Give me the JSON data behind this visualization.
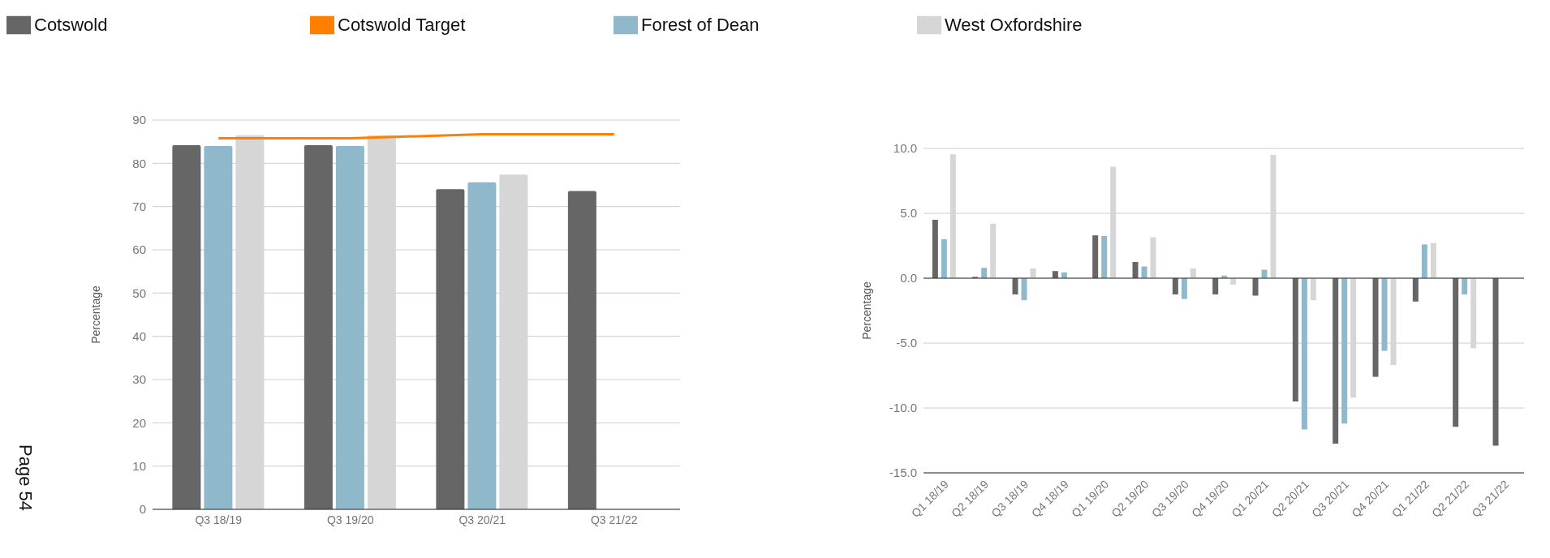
{
  "chart_data": [
    {
      "type": "bar",
      "categories": [
        "Q3 18/19",
        "Q3 19/20",
        "Q3 20/21",
        "Q3 21/22"
      ],
      "series": [
        {
          "name": "Cotswold Target",
          "type": "line",
          "color": "#ff7f00",
          "values": [
            85.8,
            85.8,
            86.7,
            86.7
          ]
        },
        {
          "name": "Cotswold",
          "color": "#666666",
          "values": [
            84.2,
            84.2,
            74.0,
            73.6
          ]
        },
        {
          "name": "Forest of Dean",
          "color": "#8fb9cb",
          "values": [
            84.0,
            84.0,
            75.6,
            null
          ]
        },
        {
          "name": "West Oxfordshire",
          "color": "#d6d6d6",
          "values": [
            86.5,
            86.5,
            77.4,
            null
          ]
        }
      ],
      "ylabel": "Percentage",
      "ylim": [
        0,
        90
      ],
      "yticks": [
        0,
        10,
        20,
        30,
        40,
        50,
        60,
        70,
        80,
        90
      ],
      "grid": "y",
      "legend": "top",
      "marker": "none",
      "annotations": [
        "Page 54"
      ]
    },
    {
      "type": "bar",
      "categories": [
        "Q1 18/19",
        "Q2 18/19",
        "Q3 18/19",
        "Q4 18/19",
        "Q1 19/20",
        "Q2 19/20",
        "Q3 19/20",
        "Q4 19/20",
        "Q1 20/21",
        "Q2 20/21",
        "Q3 20/21",
        "Q4 20/21",
        "Q1 21/22",
        "Q2 21/22",
        "Q3 21/22"
      ],
      "series": [
        {
          "color": "#666666",
          "values": [
            4.5,
            0.1,
            -1.25,
            0.55,
            3.3,
            1.25,
            -1.25,
            -1.25,
            -1.35,
            -9.5,
            -12.75,
            -7.6,
            -1.8,
            -11.45,
            -12.9
          ]
        },
        {
          "color": "#8fb9cb",
          "values": [
            3.0,
            0.8,
            -1.7,
            0.45,
            3.25,
            0.9,
            -1.6,
            0.2,
            0.65,
            -11.65,
            -11.2,
            -5.6,
            2.6,
            -1.25,
            null
          ]
        },
        {
          "color": "#d6d6d6",
          "values": [
            9.55,
            4.2,
            0.75,
            null,
            8.6,
            3.15,
            0.75,
            -0.5,
            9.5,
            -1.7,
            -9.2,
            -6.7,
            2.7,
            -5.4,
            null
          ]
        }
      ],
      "ylabel": "Percentage",
      "ylim": [
        -15,
        10
      ],
      "yticks": [
        {
          "value": -15,
          "label": "-15.0"
        },
        {
          "value": -10,
          "label": "-10.0"
        },
        {
          "value": -5,
          "label": "-5.0"
        },
        {
          "value": 0,
          "label": "0.0"
        },
        {
          "value": 5,
          "label": "5.0"
        },
        {
          "value": 10,
          "label": "10.0"
        }
      ],
      "grid": "y"
    }
  ]
}
